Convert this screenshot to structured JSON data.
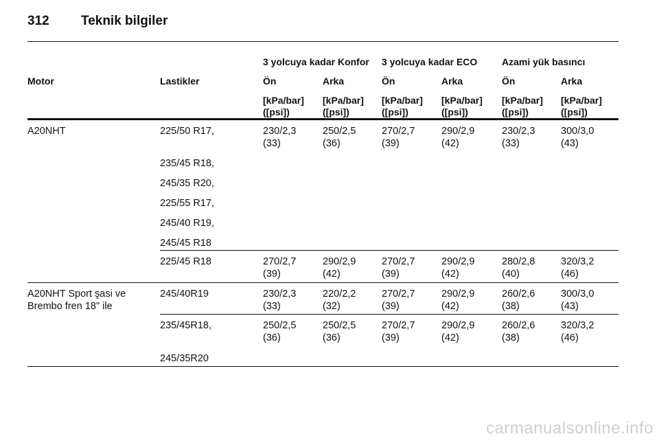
{
  "page": {
    "number": "312",
    "title": "Teknik bilgiler"
  },
  "table": {
    "groups": [
      "3 yolcuya kadar Konfor",
      "3 yolcuya kadar ECO",
      "Azami yük basıncı"
    ],
    "col_motor": "Motor",
    "col_tires": "Lastikler",
    "sub": [
      "Ön",
      "Arka",
      "Ön",
      "Arka",
      "Ön",
      "Arka"
    ],
    "unit1": "[kPa/bar]",
    "unit2": "([psi])",
    "r1": {
      "motor": "A20NHT",
      "tires": [
        "225/50 R17,",
        "235/45 R18,",
        "245/35 R20,",
        "225/55 R17,",
        "245/40 R19,",
        "245/45 R18"
      ],
      "vals": [
        [
          "230/2,3",
          "(33)"
        ],
        [
          "250/2,5",
          "(36)"
        ],
        [
          "270/2,7",
          "(39)"
        ],
        [
          "290/2,9",
          "(42)"
        ],
        [
          "230/2,3",
          "(33)"
        ],
        [
          "300/3,0",
          "(43)"
        ]
      ]
    },
    "r2": {
      "tires": "225/45 R18",
      "vals": [
        [
          "270/2,7",
          "(39)"
        ],
        [
          "290/2,9",
          "(42)"
        ],
        [
          "270/2,7",
          "(39)"
        ],
        [
          "290/2,9",
          "(42)"
        ],
        [
          "280/2,8",
          "(40)"
        ],
        [
          "320/3,2",
          "(46)"
        ]
      ]
    },
    "r3": {
      "motor1": "A20NHT Sport şasi ve",
      "motor2": "Brembo fren 18\" ile",
      "tires": "245/40R19",
      "vals": [
        [
          "230/2,3",
          "(33)"
        ],
        [
          "220/2,2",
          "(32)"
        ],
        [
          "270/2,7",
          "(39)"
        ],
        [
          "290/2,9",
          "(42)"
        ],
        [
          "260/2,6",
          "(38)"
        ],
        [
          "300/3,0",
          "(43)"
        ]
      ]
    },
    "r4": {
      "tires": [
        "235/45R18,",
        "245/35R20"
      ],
      "vals": [
        [
          "250/2,5",
          "(36)"
        ],
        [
          "250/2,5",
          "(36)"
        ],
        [
          "270/2,7",
          "(39)"
        ],
        [
          "290/2,9",
          "(42)"
        ],
        [
          "260/2,6",
          "(38)"
        ],
        [
          "320/3,2",
          "(46)"
        ]
      ]
    }
  },
  "footer": "carmanualsonline.info"
}
